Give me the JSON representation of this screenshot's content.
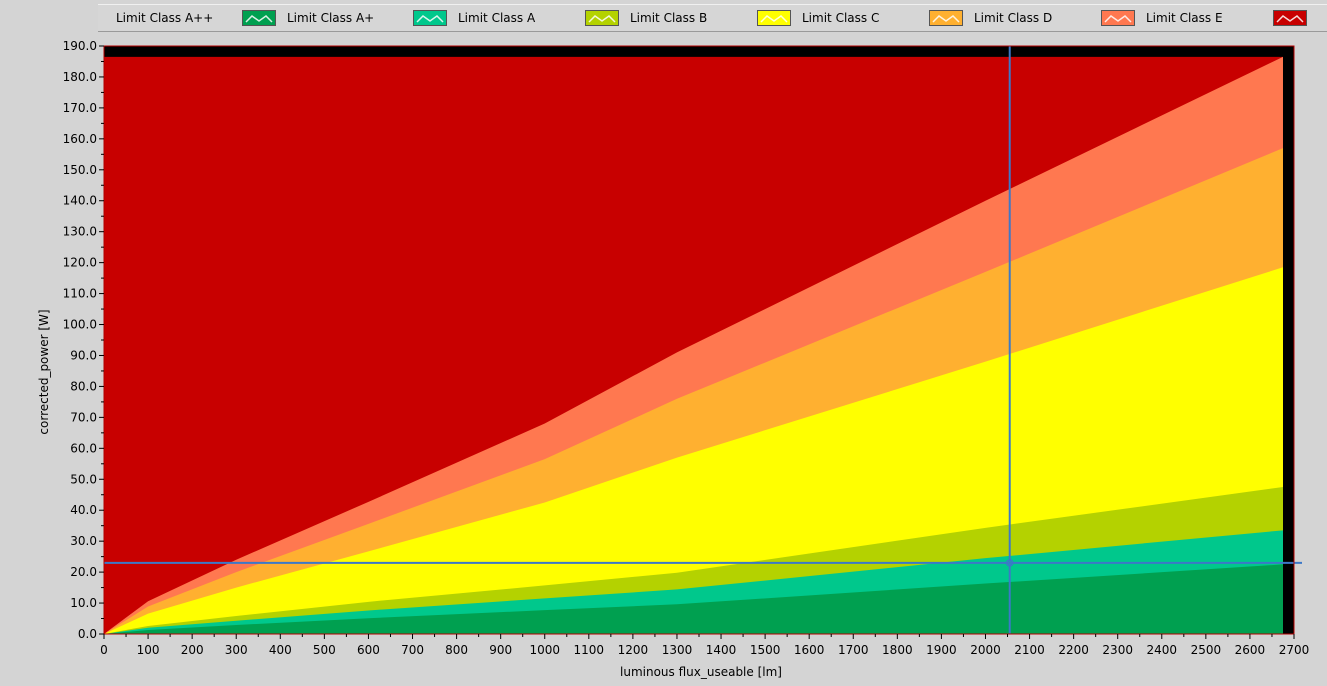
{
  "legend": {
    "items": [
      {
        "label": "Limit Class A++",
        "color": "#00a050"
      },
      {
        "label": "Limit Class A+",
        "color": "#00c88c"
      },
      {
        "label": "Limit Class A",
        "color": "#b4d200"
      },
      {
        "label": "Limit Class B",
        "color": "#ffff00"
      },
      {
        "label": "Limit Class C",
        "color": "#ffb030"
      },
      {
        "label": "Limit Class D",
        "color": "#ff7850"
      },
      {
        "label": "Limit Class E",
        "color": "#c80000"
      }
    ]
  },
  "chart_data": {
    "type": "area",
    "xlabel": "luminous flux_useable [lm]",
    "ylabel": "corrected_power [W]",
    "xlim": [
      0,
      2700
    ],
    "ylim": [
      0,
      190
    ],
    "x_ticks": [
      0,
      100,
      200,
      300,
      400,
      500,
      600,
      700,
      800,
      900,
      1000,
      1100,
      1200,
      1300,
      1400,
      1500,
      1600,
      1700,
      1800,
      1900,
      2000,
      2100,
      2200,
      2300,
      2400,
      2500,
      2600,
      2700
    ],
    "y_ticks": [
      "0.0",
      "10.0",
      "20.0",
      "30.0",
      "40.0",
      "50.0",
      "60.0",
      "70.0",
      "80.0",
      "90.0",
      "100.0",
      "110.0",
      "120.0",
      "130.0",
      "140.0",
      "150.0",
      "160.0",
      "170.0",
      "180.0",
      "190.0"
    ],
    "x": [
      0,
      100,
      300,
      600,
      1000,
      1300,
      2000,
      2675
    ],
    "series": [
      {
        "name": "Limit Class A++",
        "color": "#00a050",
        "values": [
          0,
          1.3,
          2.9,
          5.1,
          7.7,
          9.6,
          16.3,
          22.5
        ]
      },
      {
        "name": "Limit Class A+",
        "color": "#00c88c",
        "values": [
          0,
          2.0,
          4.3,
          7.6,
          11.5,
          14.4,
          24.5,
          33.5
        ]
      },
      {
        "name": "Limit Class A",
        "color": "#b4d200",
        "values": [
          0,
          2.6,
          5.8,
          10.4,
          15.7,
          19.8,
          34.3,
          47.5
        ]
      },
      {
        "name": "Limit Class B",
        "color": "#ffff00",
        "values": [
          0,
          6.6,
          15.0,
          26.7,
          42.5,
          57.0,
          88.0,
          118.5
        ]
      },
      {
        "name": "Limit Class C",
        "color": "#ffb030",
        "values": [
          0,
          8.9,
          20.0,
          35.6,
          56.5,
          76.0,
          117.0,
          157.0
        ]
      },
      {
        "name": "Limit Class D",
        "color": "#ff7850",
        "values": [
          0,
          10.6,
          24.0,
          42.7,
          68.0,
          91.0,
          140.0,
          186.5
        ]
      },
      {
        "name": "Limit Class E",
        "color": "#c80000",
        "values": [
          186.5,
          186.5,
          186.5,
          186.5,
          186.5,
          186.5,
          186.5,
          186.5
        ]
      }
    ],
    "cursor": {
      "x": 2055,
      "y": 23.0,
      "color": "#3c78c8"
    },
    "plot_background": "#000000",
    "grid": false,
    "legend_position": "top"
  }
}
